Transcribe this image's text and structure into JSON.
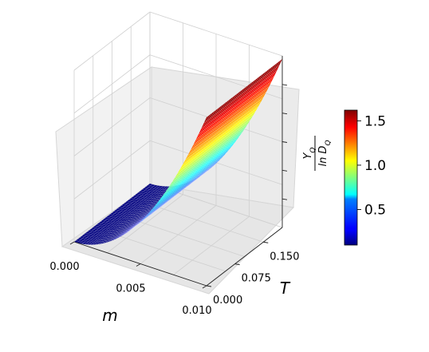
{
  "chart_data": {
    "type": "surface3d",
    "title": "",
    "x_axis": {
      "label": "m",
      "range": [
        0.0,
        0.01
      ],
      "ticks": [
        0.0,
        0.005,
        0.01
      ],
      "tick_labels": [
        "0.000",
        "0.005",
        "0.010"
      ]
    },
    "y_axis": {
      "label": "T",
      "range": [
        0.0,
        0.2
      ],
      "ticks": [
        0.0,
        0.075,
        0.15
      ],
      "tick_labels": [
        "0.000",
        "0.075",
        "0.150"
      ]
    },
    "z_axis": {
      "label": "Y_Q / ln D_Q",
      "label_numerator": "Y",
      "label_numerator_sub": "Q",
      "label_denominator": "ln D",
      "label_denominator_sub": "Q",
      "range": [
        0.0,
        1.65
      ]
    },
    "surface": {
      "description_of_trend": "value grows roughly as m squared, independent of T",
      "exponent_in_m": 2,
      "z_at_m_max": 1.62,
      "z_at_m_min": 0.0
    },
    "colorbar": {
      "colormap": "jet",
      "range": [
        0.1,
        1.62
      ],
      "ticks": [
        0.5,
        1.0,
        1.5
      ],
      "tick_labels": [
        "0.5",
        "1.0",
        "1.5"
      ]
    },
    "grid": true,
    "legend": "none"
  }
}
